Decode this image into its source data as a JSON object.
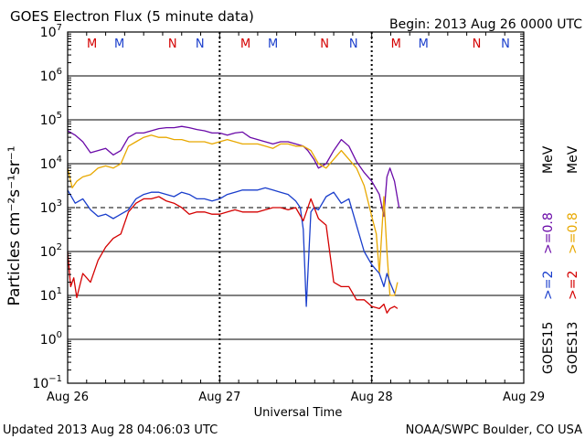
{
  "chart_data": {
    "type": "line",
    "title": "GOES Electron Flux (5 minute data)",
    "begin_label": "Begin: 2013 Aug 26 0000 UTC",
    "xlabel": "Universal Time",
    "ylabel": "Particles cm⁻²s⁻¹sr⁻¹",
    "updated_label": "Updated 2013 Aug 28 04:06:03 UTC",
    "credit_label": "NOAA/SWPC Boulder, CO USA",
    "x_unit": "days since 2013 Aug 26 0000 UTC",
    "xlim": [
      0,
      3
    ],
    "ylim_log10": [
      -1,
      7
    ],
    "y_scale": "log",
    "x_ticks": [
      {
        "value": 0,
        "label": "Aug 26"
      },
      {
        "value": 1,
        "label": "Aug 27"
      },
      {
        "value": 2,
        "label": "Aug 28"
      },
      {
        "value": 3,
        "label": "Aug 29"
      }
    ],
    "y_ticks": [
      {
        "exp": 7,
        "label": "7"
      },
      {
        "exp": 6,
        "label": "6"
      },
      {
        "exp": 5,
        "label": "5"
      },
      {
        "exp": 4,
        "label": "4"
      },
      {
        "exp": 3,
        "label": "3"
      },
      {
        "exp": 2,
        "label": "2"
      },
      {
        "exp": 1,
        "label": "1"
      },
      {
        "exp": 0,
        "label": "0"
      },
      {
        "exp": -1,
        "label": "−1"
      }
    ],
    "dashed_threshold_log10": 3,
    "day_night_markers": [
      {
        "x": 0.16,
        "letter": "M",
        "color": "#d40000"
      },
      {
        "x": 0.34,
        "letter": "M",
        "color": "#1a3ecc"
      },
      {
        "x": 0.69,
        "letter": "N",
        "color": "#d40000"
      },
      {
        "x": 0.87,
        "letter": "N",
        "color": "#1a3ecc"
      },
      {
        "x": 1.17,
        "letter": "M",
        "color": "#d40000"
      },
      {
        "x": 1.35,
        "letter": "M",
        "color": "#1a3ecc"
      },
      {
        "x": 1.69,
        "letter": "N",
        "color": "#d40000"
      },
      {
        "x": 1.88,
        "letter": "N",
        "color": "#1a3ecc"
      },
      {
        "x": 2.16,
        "letter": "M",
        "color": "#d40000"
      },
      {
        "x": 2.34,
        "letter": "M",
        "color": "#1a3ecc"
      },
      {
        "x": 2.69,
        "letter": "N",
        "color": "#d40000"
      },
      {
        "x": 2.88,
        "letter": "N",
        "color": "#1a3ecc"
      }
    ],
    "legend": {
      "goes15_label": "GOES15",
      "goes13_label": "GOES13",
      "ge2_label": ">=2",
      "ge08_label": ">=0.8",
      "mev_label": "MeV"
    },
    "series": [
      {
        "name": "GOES15 >=0.8 MeV",
        "color": "#6a0aa8",
        "x": [
          0,
          0.05,
          0.1,
          0.15,
          0.2,
          0.25,
          0.3,
          0.35,
          0.4,
          0.45,
          0.5,
          0.55,
          0.6,
          0.65,
          0.7,
          0.75,
          0.8,
          0.85,
          0.9,
          0.95,
          1.0,
          1.05,
          1.1,
          1.15,
          1.2,
          1.25,
          1.3,
          1.35,
          1.4,
          1.45,
          1.5,
          1.55,
          1.58,
          1.6,
          1.62,
          1.65,
          1.7,
          1.75,
          1.8,
          1.85,
          1.9,
          1.95,
          2.0,
          2.05,
          2.08,
          2.1,
          2.12,
          2.15,
          2.18
        ],
        "log10": [
          4.75,
          4.65,
          4.5,
          4.25,
          4.3,
          4.35,
          4.2,
          4.3,
          4.6,
          4.7,
          4.7,
          4.75,
          4.8,
          4.82,
          4.82,
          4.85,
          4.82,
          4.78,
          4.75,
          4.7,
          4.7,
          4.65,
          4.7,
          4.72,
          4.6,
          4.55,
          4.5,
          4.45,
          4.5,
          4.5,
          4.45,
          4.4,
          4.3,
          4.2,
          4.1,
          3.9,
          4.0,
          4.3,
          4.55,
          4.4,
          4.05,
          3.8,
          3.6,
          3.3,
          2.8,
          3.7,
          3.9,
          3.6,
          3.0
        ]
      },
      {
        "name": "GOES13 >=0.8 MeV",
        "color": "#e8a800",
        "x": [
          0,
          0.03,
          0.06,
          0.1,
          0.15,
          0.2,
          0.25,
          0.3,
          0.35,
          0.4,
          0.45,
          0.5,
          0.55,
          0.6,
          0.65,
          0.7,
          0.75,
          0.8,
          0.85,
          0.9,
          0.95,
          1.0,
          1.05,
          1.1,
          1.15,
          1.2,
          1.25,
          1.3,
          1.35,
          1.4,
          1.45,
          1.5,
          1.55,
          1.6,
          1.65,
          1.7,
          1.75,
          1.8,
          1.85,
          1.9,
          1.95,
          2.0,
          2.03,
          2.05,
          2.08,
          2.1,
          2.12,
          2.15,
          2.17
        ],
        "log10": [
          3.9,
          3.45,
          3.6,
          3.7,
          3.75,
          3.9,
          3.95,
          3.9,
          4.0,
          4.4,
          4.5,
          4.6,
          4.65,
          4.6,
          4.6,
          4.55,
          4.55,
          4.5,
          4.5,
          4.5,
          4.45,
          4.5,
          4.55,
          4.5,
          4.45,
          4.45,
          4.45,
          4.4,
          4.35,
          4.45,
          4.45,
          4.4,
          4.4,
          4.3,
          4.0,
          3.9,
          4.1,
          4.3,
          4.1,
          3.9,
          3.5,
          2.8,
          2.4,
          1.5,
          3.25,
          2.0,
          1.0,
          1.0,
          1.3
        ]
      },
      {
        "name": "GOES15 >=2 MeV",
        "color": "#1a3ecc",
        "x": [
          0,
          0.05,
          0.1,
          0.15,
          0.2,
          0.25,
          0.3,
          0.35,
          0.4,
          0.45,
          0.5,
          0.55,
          0.6,
          0.65,
          0.7,
          0.75,
          0.8,
          0.85,
          0.9,
          0.95,
          1.0,
          1.05,
          1.1,
          1.15,
          1.2,
          1.25,
          1.3,
          1.35,
          1.4,
          1.45,
          1.5,
          1.53,
          1.55,
          1.57,
          1.6,
          1.62,
          1.65,
          1.7,
          1.75,
          1.8,
          1.85,
          1.9,
          1.95,
          2.0,
          2.05,
          2.08,
          2.1,
          2.12,
          2.15
        ],
        "log10": [
          3.4,
          3.1,
          3.2,
          2.95,
          2.8,
          2.85,
          2.75,
          2.85,
          2.95,
          3.2,
          3.3,
          3.35,
          3.35,
          3.3,
          3.25,
          3.35,
          3.3,
          3.2,
          3.2,
          3.15,
          3.2,
          3.3,
          3.35,
          3.4,
          3.4,
          3.4,
          3.45,
          3.4,
          3.35,
          3.3,
          3.15,
          3.0,
          2.5,
          0.75,
          2.9,
          3.0,
          2.95,
          3.25,
          3.35,
          3.1,
          3.2,
          2.6,
          2.0,
          1.7,
          1.5,
          1.2,
          1.5,
          1.3,
          1.05
        ]
      },
      {
        "name": "GOES13 >=2 MeV",
        "color": "#d40000",
        "x": [
          0,
          0.02,
          0.04,
          0.06,
          0.1,
          0.15,
          0.2,
          0.25,
          0.3,
          0.35,
          0.4,
          0.45,
          0.5,
          0.55,
          0.6,
          0.65,
          0.7,
          0.75,
          0.8,
          0.85,
          0.9,
          0.95,
          1.0,
          1.05,
          1.1,
          1.15,
          1.2,
          1.25,
          1.3,
          1.35,
          1.4,
          1.45,
          1.5,
          1.55,
          1.6,
          1.65,
          1.7,
          1.75,
          1.8,
          1.85,
          1.9,
          1.95,
          2.0,
          2.05,
          2.08,
          2.1,
          2.12,
          2.15,
          2.17
        ],
        "log10": [
          2.0,
          1.2,
          1.4,
          0.95,
          1.5,
          1.3,
          1.8,
          2.1,
          2.3,
          2.4,
          2.9,
          3.1,
          3.2,
          3.2,
          3.25,
          3.15,
          3.1,
          3.0,
          2.85,
          2.9,
          2.9,
          2.85,
          2.85,
          2.9,
          2.95,
          2.9,
          2.9,
          2.9,
          2.95,
          3.0,
          3.0,
          2.95,
          3.0,
          2.7,
          3.2,
          2.75,
          2.6,
          1.3,
          1.2,
          1.2,
          0.9,
          0.9,
          0.75,
          0.7,
          0.8,
          0.6,
          0.7,
          0.75,
          0.7
        ]
      }
    ]
  }
}
